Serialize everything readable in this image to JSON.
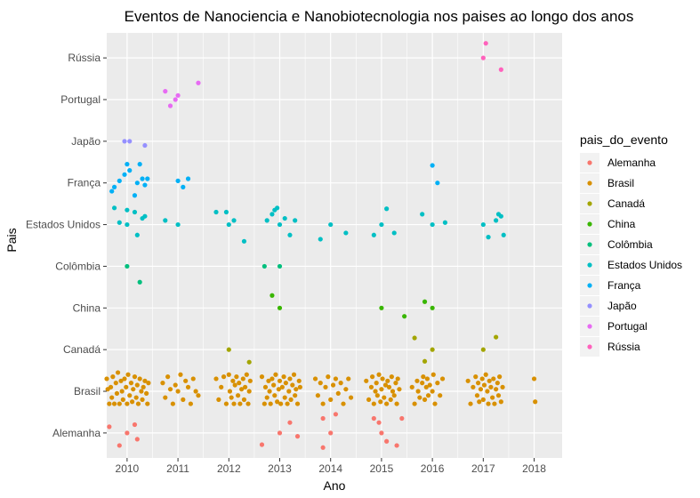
{
  "chart_data": {
    "type": "scatter",
    "title": "Eventos de Nanociencia e Nanobiotecnologia nos paises ao longo dos anos",
    "xlabel": "Ano",
    "ylabel": "Pais",
    "xlim": [
      2009.6,
      2018.55
    ],
    "x_ticks": [
      "2010",
      "2011",
      "2012",
      "2013",
      "2014",
      "2015",
      "2016",
      "2017",
      "2018"
    ],
    "categories": [
      "Alemanha",
      "Brasil",
      "Canadá",
      "China",
      "Colômbia",
      "Estados Unidos",
      "França",
      "Japão",
      "Portugal",
      "Rússia"
    ],
    "grid": true,
    "legend": {
      "title": "pais_do_evento",
      "position": "right"
    },
    "series": [
      {
        "name": "Alemanha",
        "color": "#F8766D",
        "points": [
          [
            2009.65,
            0.15
          ],
          [
            2009.85,
            -0.3
          ],
          [
            2010.0,
            0.0
          ],
          [
            2010.2,
            -0.15
          ],
          [
            2010.15,
            0.2
          ],
          [
            2012.65,
            -0.28
          ],
          [
            2013.0,
            0.0
          ],
          [
            2013.2,
            0.25
          ],
          [
            2013.35,
            -0.08
          ],
          [
            2013.85,
            -0.35
          ],
          [
            2013.85,
            0.35
          ],
          [
            2014.0,
            0.0
          ],
          [
            2014.1,
            0.45
          ],
          [
            2014.85,
            0.35
          ],
          [
            2014.95,
            0.25
          ],
          [
            2015.0,
            0.0
          ],
          [
            2015.1,
            -0.2
          ],
          [
            2015.3,
            -0.3
          ],
          [
            2015.4,
            0.35
          ]
        ]
      },
      {
        "name": "Brasil",
        "color": "#D89000",
        "points": [
          [
            2009.6,
            0.3
          ],
          [
            2009.62,
            0.05
          ],
          [
            2009.65,
            -0.3
          ],
          [
            2009.68,
            0.1
          ],
          [
            2009.7,
            -0.15
          ],
          [
            2009.72,
            0.35
          ],
          [
            2009.75,
            -0.3
          ],
          [
            2009.78,
            0.2
          ],
          [
            2009.8,
            -0.05
          ],
          [
            2009.82,
            0.45
          ],
          [
            2009.85,
            -0.3
          ],
          [
            2009.88,
            0.25
          ],
          [
            2009.9,
            0.0
          ],
          [
            2009.92,
            -0.2
          ],
          [
            2009.95,
            0.3
          ],
          [
            2009.98,
            0.1
          ],
          [
            2010.0,
            -0.3
          ],
          [
            2010.02,
            0.4
          ],
          [
            2010.05,
            -0.1
          ],
          [
            2010.08,
            0.2
          ],
          [
            2010.1,
            -0.25
          ],
          [
            2010.12,
            0.05
          ],
          [
            2010.15,
            0.35
          ],
          [
            2010.18,
            -0.15
          ],
          [
            2010.2,
            0.15
          ],
          [
            2010.22,
            -0.3
          ],
          [
            2010.25,
            0.3
          ],
          [
            2010.28,
            0.0
          ],
          [
            2010.3,
            -0.2
          ],
          [
            2010.32,
            0.1
          ],
          [
            2010.35,
            0.25
          ],
          [
            2010.38,
            -0.05
          ],
          [
            2010.4,
            -0.3
          ],
          [
            2010.42,
            0.2
          ],
          [
            2010.7,
            0.2
          ],
          [
            2010.75,
            -0.15
          ],
          [
            2010.8,
            0.35
          ],
          [
            2010.85,
            0.05
          ],
          [
            2010.9,
            -0.3
          ],
          [
            2010.95,
            0.15
          ],
          [
            2011.0,
            0.0
          ],
          [
            2011.05,
            0.4
          ],
          [
            2011.1,
            -0.2
          ],
          [
            2011.15,
            0.25
          ],
          [
            2011.2,
            0.1
          ],
          [
            2011.25,
            -0.3
          ],
          [
            2011.3,
            0.3
          ],
          [
            2011.35,
            0.0
          ],
          [
            2011.4,
            -0.1
          ],
          [
            2011.75,
            0.3
          ],
          [
            2011.8,
            -0.2
          ],
          [
            2011.85,
            0.1
          ],
          [
            2011.9,
            0.35
          ],
          [
            2011.95,
            -0.3
          ],
          [
            2012.0,
            0.4
          ],
          [
            2012.02,
            0.0
          ],
          [
            2012.05,
            -0.15
          ],
          [
            2012.08,
            0.25
          ],
          [
            2012.1,
            -0.3
          ],
          [
            2012.12,
            0.15
          ],
          [
            2012.15,
            0.35
          ],
          [
            2012.18,
            -0.1
          ],
          [
            2012.2,
            0.2
          ],
          [
            2012.22,
            -0.3
          ],
          [
            2012.25,
            0.05
          ],
          [
            2012.28,
            0.3
          ],
          [
            2012.3,
            -0.2
          ],
          [
            2012.32,
            0.1
          ],
          [
            2012.35,
            0.4
          ],
          [
            2012.38,
            -0.3
          ],
          [
            2012.4,
            0.0
          ],
          [
            2012.42,
            0.25
          ],
          [
            2012.65,
            0.35
          ],
          [
            2012.7,
            -0.3
          ],
          [
            2012.72,
            0.1
          ],
          [
            2012.75,
            -0.15
          ],
          [
            2012.78,
            0.25
          ],
          [
            2012.8,
            0.0
          ],
          [
            2012.82,
            -0.3
          ],
          [
            2012.85,
            0.3
          ],
          [
            2012.88,
            0.15
          ],
          [
            2012.9,
            -0.1
          ],
          [
            2012.92,
            0.4
          ],
          [
            2012.95,
            -0.25
          ],
          [
            2012.98,
            0.05
          ],
          [
            2013.0,
            0.25
          ],
          [
            2013.02,
            -0.3
          ],
          [
            2013.05,
            0.1
          ],
          [
            2013.08,
            0.35
          ],
          [
            2013.1,
            -0.15
          ],
          [
            2013.12,
            0.2
          ],
          [
            2013.15,
            -0.3
          ],
          [
            2013.18,
            0.0
          ],
          [
            2013.2,
            0.3
          ],
          [
            2013.22,
            -0.2
          ],
          [
            2013.25,
            0.15
          ],
          [
            2013.28,
            0.4
          ],
          [
            2013.3,
            -0.1
          ],
          [
            2013.32,
            0.05
          ],
          [
            2013.35,
            -0.3
          ],
          [
            2013.38,
            0.25
          ],
          [
            2013.4,
            0.1
          ],
          [
            2013.7,
            0.3
          ],
          [
            2013.75,
            -0.1
          ],
          [
            2013.8,
            0.2
          ],
          [
            2013.85,
            -0.3
          ],
          [
            2013.9,
            0.1
          ],
          [
            2013.95,
            0.35
          ],
          [
            2014.0,
            -0.2
          ],
          [
            2014.05,
            0.15
          ],
          [
            2014.1,
            0.3
          ],
          [
            2014.15,
            -0.05
          ],
          [
            2014.2,
            0.2
          ],
          [
            2014.25,
            -0.3
          ],
          [
            2014.3,
            0.05
          ],
          [
            2014.35,
            0.3
          ],
          [
            2014.4,
            -0.15
          ],
          [
            2014.7,
            0.25
          ],
          [
            2014.75,
            -0.2
          ],
          [
            2014.8,
            0.1
          ],
          [
            2014.82,
            0.35
          ],
          [
            2014.85,
            -0.3
          ],
          [
            2014.88,
            0.0
          ],
          [
            2014.9,
            0.2
          ],
          [
            2014.92,
            -0.1
          ],
          [
            2014.95,
            0.4
          ],
          [
            2014.98,
            -0.25
          ],
          [
            2015.0,
            0.05
          ],
          [
            2015.02,
            0.3
          ],
          [
            2015.05,
            -0.15
          ],
          [
            2015.08,
            0.15
          ],
          [
            2015.1,
            -0.3
          ],
          [
            2015.12,
            0.25
          ],
          [
            2015.15,
            0.1
          ],
          [
            2015.18,
            -0.2
          ],
          [
            2015.2,
            0.35
          ],
          [
            2015.22,
            0.0
          ],
          [
            2015.25,
            -0.1
          ],
          [
            2015.28,
            0.2
          ],
          [
            2015.3,
            -0.3
          ],
          [
            2015.32,
            0.3
          ],
          [
            2015.35,
            0.05
          ],
          [
            2015.6,
            0.1
          ],
          [
            2015.65,
            -0.3
          ],
          [
            2015.7,
            0.25
          ],
          [
            2015.72,
            0.0
          ],
          [
            2015.75,
            -0.15
          ],
          [
            2015.8,
            0.2
          ],
          [
            2015.82,
            0.35
          ],
          [
            2015.85,
            -0.2
          ],
          [
            2015.88,
            0.1
          ],
          [
            2015.9,
            0.3
          ],
          [
            2015.92,
            -0.1
          ],
          [
            2015.95,
            0.15
          ],
          [
            2016.0,
            0.0
          ],
          [
            2016.02,
            0.4
          ],
          [
            2016.05,
            -0.3
          ],
          [
            2016.1,
            0.2
          ],
          [
            2016.15,
            -0.1
          ],
          [
            2016.2,
            0.3
          ],
          [
            2016.7,
            0.25
          ],
          [
            2016.75,
            -0.3
          ],
          [
            2016.8,
            0.1
          ],
          [
            2016.85,
            0.35
          ],
          [
            2016.88,
            -0.1
          ],
          [
            2016.9,
            0.2
          ],
          [
            2016.92,
            -0.25
          ],
          [
            2016.95,
            0.05
          ],
          [
            2016.98,
            0.3
          ],
          [
            2017.0,
            -0.2
          ],
          [
            2017.02,
            0.15
          ],
          [
            2017.05,
            0.4
          ],
          [
            2017.08,
            0.0
          ],
          [
            2017.1,
            -0.3
          ],
          [
            2017.12,
            0.25
          ],
          [
            2017.15,
            0.1
          ],
          [
            2017.18,
            -0.15
          ],
          [
            2017.2,
            0.3
          ],
          [
            2017.22,
            -0.3
          ],
          [
            2017.25,
            0.05
          ],
          [
            2017.28,
            0.2
          ],
          [
            2017.3,
            -0.1
          ],
          [
            2017.32,
            0.35
          ],
          [
            2017.35,
            -0.25
          ],
          [
            2017.38,
            0.1
          ],
          [
            2018.0,
            0.3
          ],
          [
            2018.02,
            -0.25
          ]
        ]
      },
      {
        "name": "Canadá",
        "color": "#A3A500",
        "points": [
          [
            2012.0,
            0.0
          ],
          [
            2012.4,
            -0.3
          ],
          [
            2015.65,
            0.28
          ],
          [
            2015.85,
            -0.28
          ],
          [
            2016.0,
            0.0
          ],
          [
            2017.0,
            0.0
          ],
          [
            2017.25,
            0.3
          ]
        ]
      },
      {
        "name": "China",
        "color": "#39B600",
        "points": [
          [
            2012.85,
            0.3
          ],
          [
            2013.0,
            0.0
          ],
          [
            2015.0,
            0.0
          ],
          [
            2015.45,
            -0.2
          ],
          [
            2015.85,
            0.15
          ],
          [
            2016.0,
            0.0
          ]
        ]
      },
      {
        "name": "Colômbia",
        "color": "#00BF7D",
        "points": [
          [
            2010.0,
            0.0
          ],
          [
            2010.25,
            -0.38
          ],
          [
            2012.7,
            0.0
          ],
          [
            2013.0,
            0.0
          ]
        ]
      },
      {
        "name": "Estados Unidos",
        "color": "#00BFC4",
        "points": [
          [
            2009.75,
            0.4
          ],
          [
            2009.85,
            0.05
          ],
          [
            2010.0,
            0.35
          ],
          [
            2010.0,
            0.0
          ],
          [
            2010.15,
            0.3
          ],
          [
            2010.2,
            -0.25
          ],
          [
            2010.3,
            0.15
          ],
          [
            2010.35,
            0.2
          ],
          [
            2010.75,
            0.1
          ],
          [
            2011.0,
            0.0
          ],
          [
            2011.75,
            0.3
          ],
          [
            2011.95,
            0.3
          ],
          [
            2012.0,
            0.0
          ],
          [
            2012.1,
            0.1
          ],
          [
            2012.3,
            -0.4
          ],
          [
            2012.75,
            0.1
          ],
          [
            2012.85,
            0.25
          ],
          [
            2012.9,
            0.35
          ],
          [
            2012.95,
            0.4
          ],
          [
            2013.0,
            0.0
          ],
          [
            2013.1,
            0.15
          ],
          [
            2013.2,
            -0.25
          ],
          [
            2013.3,
            0.1
          ],
          [
            2013.8,
            -0.35
          ],
          [
            2014.0,
            0.0
          ],
          [
            2014.3,
            -0.2
          ],
          [
            2014.85,
            -0.25
          ],
          [
            2015.0,
            0.0
          ],
          [
            2015.1,
            0.38
          ],
          [
            2015.25,
            -0.2
          ],
          [
            2015.8,
            0.25
          ],
          [
            2016.0,
            0.0
          ],
          [
            2016.25,
            0.05
          ],
          [
            2017.0,
            0.0
          ],
          [
            2017.1,
            -0.3
          ],
          [
            2017.25,
            0.1
          ],
          [
            2017.3,
            0.25
          ],
          [
            2017.35,
            0.2
          ],
          [
            2017.4,
            -0.25
          ]
        ]
      },
      {
        "name": "França",
        "color": "#00B0F6",
        "points": [
          [
            2009.7,
            -0.2
          ],
          [
            2009.75,
            -0.1
          ],
          [
            2009.85,
            0.05
          ],
          [
            2009.95,
            0.2
          ],
          [
            2010.0,
            0.45
          ],
          [
            2010.05,
            0.3
          ],
          [
            2010.15,
            -0.3
          ],
          [
            2010.2,
            0.0
          ],
          [
            2010.25,
            0.45
          ],
          [
            2010.3,
            0.1
          ],
          [
            2010.35,
            -0.05
          ],
          [
            2010.4,
            0.1
          ],
          [
            2011.0,
            0.05
          ],
          [
            2011.1,
            -0.1
          ],
          [
            2011.2,
            0.1
          ],
          [
            2016.0,
            0.42
          ],
          [
            2016.1,
            0.0
          ]
        ]
      },
      {
        "name": "Japão",
        "color": "#9590FF",
        "points": [
          [
            2009.95,
            0.0
          ],
          [
            2010.05,
            0.0
          ],
          [
            2010.35,
            -0.1
          ]
        ]
      },
      {
        "name": "Portugal",
        "color": "#E76BF3",
        "points": [
          [
            2010.75,
            0.2
          ],
          [
            2010.85,
            -0.15
          ],
          [
            2010.95,
            0.0
          ],
          [
            2011.0,
            0.1
          ],
          [
            2011.4,
            0.4
          ]
        ]
      },
      {
        "name": "Rússia",
        "color": "#FF62BC",
        "points": [
          [
            2017.0,
            0.0
          ],
          [
            2017.05,
            0.35
          ],
          [
            2017.35,
            -0.28
          ]
        ]
      }
    ]
  }
}
